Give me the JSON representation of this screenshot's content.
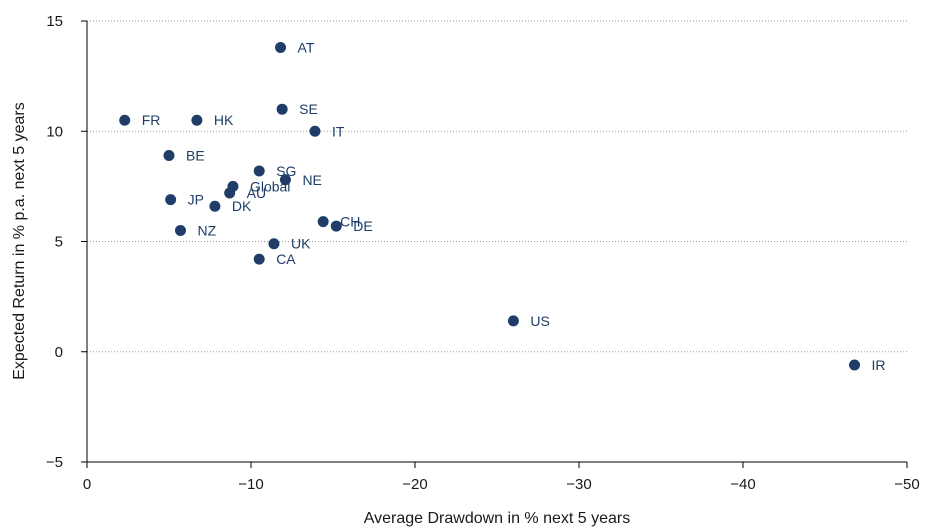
{
  "chart_data": {
    "type": "scatter",
    "xlabel": "Average Drawdown in % next 5 years",
    "ylabel": "Expected Return in % p.a. next 5 years",
    "xlim": [
      0,
      -50
    ],
    "ylim": [
      -5,
      15
    ],
    "x_ticks": [
      0,
      -10,
      -20,
      -30,
      -40,
      -50
    ],
    "x_tick_labels": [
      "0",
      "−10",
      "−20",
      "−30",
      "−40",
      "−50"
    ],
    "y_ticks": [
      -5,
      0,
      5,
      10,
      15
    ],
    "y_tick_labels": [
      "−5",
      "0",
      "5",
      "10",
      "15"
    ],
    "grid": "horizontal dotted",
    "marker_color": "#1f3d66",
    "label_color": "#1f3d66",
    "points": [
      {
        "label": "AT",
        "x": -11.8,
        "y": 13.8
      },
      {
        "label": "SE",
        "x": -11.9,
        "y": 11.0
      },
      {
        "label": "FR",
        "x": -2.3,
        "y": 10.5
      },
      {
        "label": "HK",
        "x": -6.7,
        "y": 10.5
      },
      {
        "label": "IT",
        "x": -13.9,
        "y": 10.0
      },
      {
        "label": "BE",
        "x": -5.0,
        "y": 8.9
      },
      {
        "label": "SG",
        "x": -10.5,
        "y": 8.2
      },
      {
        "label": "NE",
        "x": -12.1,
        "y": 7.8
      },
      {
        "label": "Global",
        "x": -8.9,
        "y": 7.5
      },
      {
        "label": "AU",
        "x": -8.7,
        "y": 7.2
      },
      {
        "label": "JP",
        "x": -5.1,
        "y": 6.9
      },
      {
        "label": "DK",
        "x": -7.8,
        "y": 6.6
      },
      {
        "label": "CH",
        "x": -14.4,
        "y": 5.9
      },
      {
        "label": "DE",
        "x": -15.2,
        "y": 5.7
      },
      {
        "label": "NZ",
        "x": -5.7,
        "y": 5.5
      },
      {
        "label": "UK",
        "x": -11.4,
        "y": 4.9
      },
      {
        "label": "CA",
        "x": -10.5,
        "y": 4.2
      },
      {
        "label": "US",
        "x": -26.0,
        "y": 1.4
      },
      {
        "label": "IR",
        "x": -46.8,
        "y": -0.6
      }
    ]
  }
}
